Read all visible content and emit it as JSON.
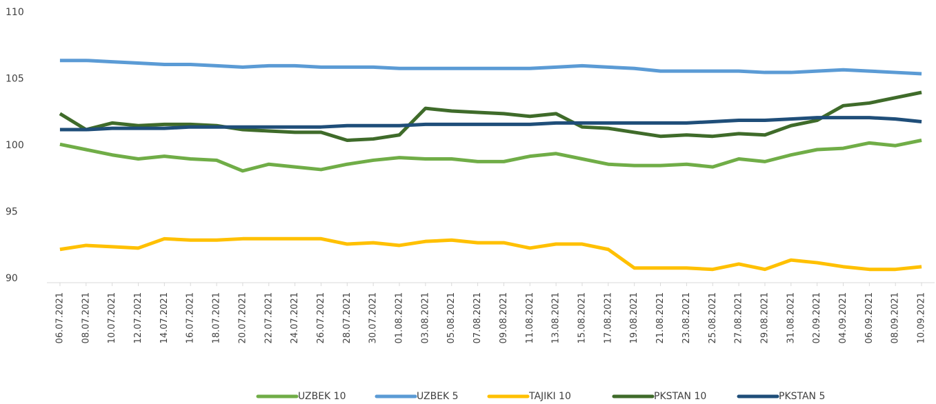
{
  "chart_data": {
    "type": "line",
    "categories": [
      "06.07.2021",
      "08.07.2021",
      "10.07.2021",
      "12.07.2021",
      "14.07.2021",
      "16.07.2021",
      "18.07.2021",
      "20.07.2021",
      "22.07.2021",
      "24.07.2021",
      "26.07.2021",
      "28.07.2021",
      "30.07.2021",
      "01.08.2021",
      "03.08.2021",
      "05.08.2021",
      "07.08.2021",
      "09.08.2021",
      "11.08.2021",
      "13.08.2021",
      "15.08.2021",
      "17.08.2021",
      "19.08.2021",
      "21.08.2021",
      "23.08.2021",
      "25.08.2021",
      "27.08.2021",
      "29.08.2021",
      "31.08.2021",
      "02.09.2021",
      "04.09.2021",
      "06.09.2021",
      "08.09.2021",
      "10.09.2021"
    ],
    "series": [
      {
        "name": "UZBEK 10",
        "color": "#70ad47",
        "values": [
          100.4,
          100.0,
          99.6,
          99.3,
          99.5,
          99.3,
          99.2,
          98.4,
          98.9,
          98.7,
          98.5,
          98.9,
          99.2,
          99.4,
          99.3,
          99.3,
          99.1,
          99.1,
          99.5,
          99.7,
          99.3,
          98.9,
          98.8,
          98.8,
          98.9,
          98.7,
          99.3,
          99.1,
          99.6,
          100.0,
          100.1,
          100.5,
          100.3,
          100.7
        ]
      },
      {
        "name": "UZBEK 5",
        "color": "#5b9bd5",
        "values": [
          106.7,
          106.7,
          106.6,
          106.5,
          106.4,
          106.4,
          106.3,
          106.2,
          106.3,
          106.3,
          106.2,
          106.2,
          106.2,
          106.1,
          106.1,
          106.1,
          106.1,
          106.1,
          106.1,
          106.2,
          106.3,
          106.2,
          106.1,
          105.9,
          105.9,
          105.9,
          105.9,
          105.8,
          105.8,
          105.9,
          106.0,
          105.9,
          105.8,
          105.7
        ]
      },
      {
        "name": "TAJIKI 10",
        "color": "#ffc000",
        "values": [
          92.5,
          92.8,
          92.7,
          92.6,
          93.3,
          93.2,
          93.2,
          93.3,
          93.3,
          93.3,
          93.3,
          92.9,
          93.0,
          92.8,
          93.1,
          93.2,
          93.0,
          93.0,
          92.6,
          92.9,
          92.9,
          92.5,
          91.1,
          91.1,
          91.1,
          91.0,
          91.4,
          91.0,
          91.7,
          91.5,
          91.2,
          91.0,
          91.0,
          91.2
        ]
      },
      {
        "name": "PKSTAN 10",
        "color": "#3f6b2a",
        "values": [
          102.7,
          101.5,
          102.0,
          101.8,
          101.9,
          101.9,
          101.8,
          101.5,
          101.4,
          101.3,
          101.3,
          100.7,
          100.8,
          101.1,
          103.1,
          102.9,
          102.8,
          102.7,
          102.5,
          102.7,
          101.7,
          101.6,
          101.3,
          101.0,
          101.1,
          101.0,
          101.2,
          101.1,
          101.8,
          102.2,
          103.3,
          103.5,
          103.9,
          104.3
        ]
      },
      {
        "name": "PKSTAN 5",
        "color": "#1f4e79",
        "values": [
          101.5,
          101.5,
          101.6,
          101.6,
          101.6,
          101.7,
          101.7,
          101.7,
          101.7,
          101.7,
          101.7,
          101.8,
          101.8,
          101.8,
          101.9,
          101.9,
          101.9,
          101.9,
          101.9,
          102.0,
          102.0,
          102.0,
          102.0,
          102.0,
          102.0,
          102.1,
          102.2,
          102.2,
          102.3,
          102.4,
          102.4,
          102.4,
          102.3,
          102.1
        ]
      }
    ],
    "ylim": [
      90,
      110
    ],
    "yticks": [
      90,
      95,
      100,
      105,
      110
    ],
    "grid": false,
    "legend": "bottom"
  }
}
